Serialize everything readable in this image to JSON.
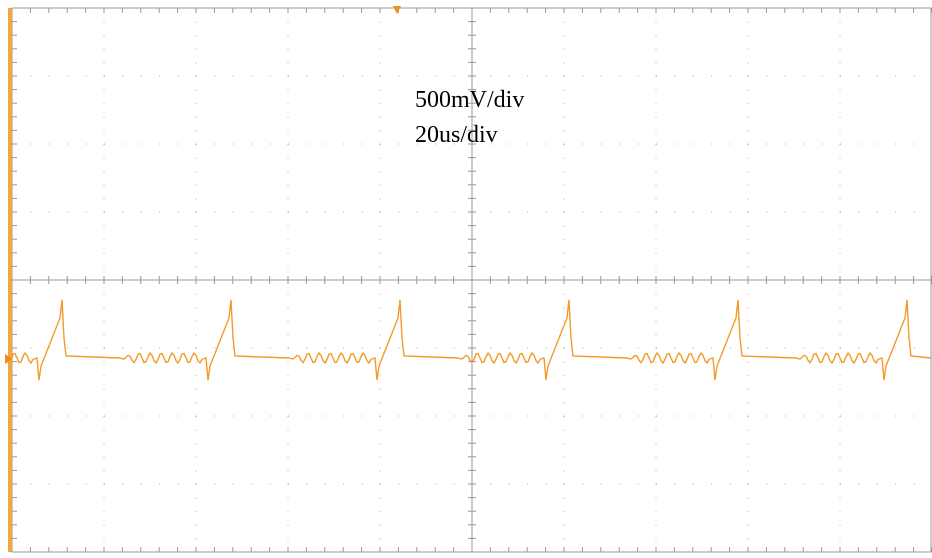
{
  "labels": {
    "volts_per_div": "500mV/div",
    "time_per_div": "20us/div"
  }
}
